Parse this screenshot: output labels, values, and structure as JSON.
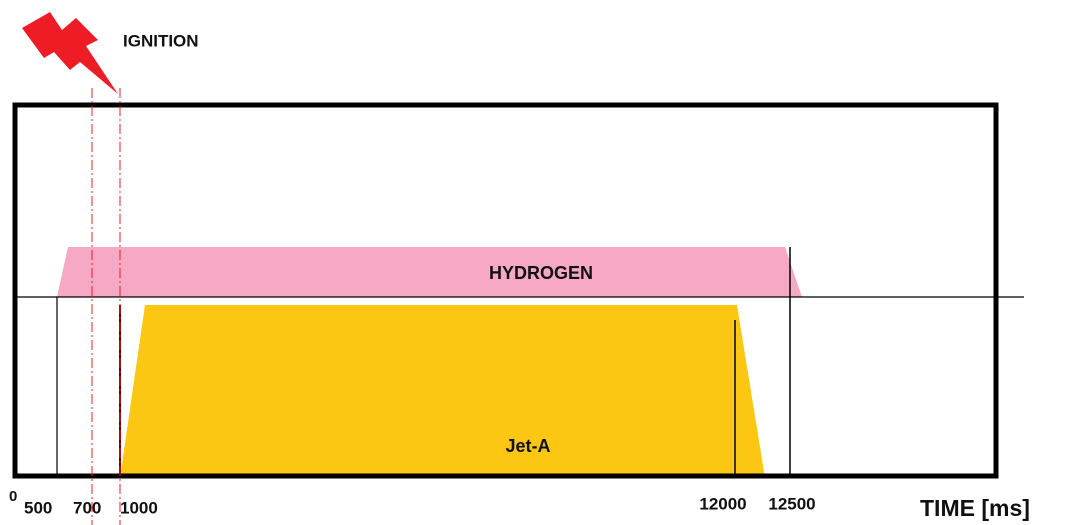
{
  "labels": {
    "ignition": "IGNITION",
    "hydrogen": "HYDROGEN",
    "jet_a": "Jet-A",
    "axis_title": "TIME [ms]"
  },
  "ticks": [
    0,
    500,
    700,
    1000,
    12000,
    12500
  ]
}
